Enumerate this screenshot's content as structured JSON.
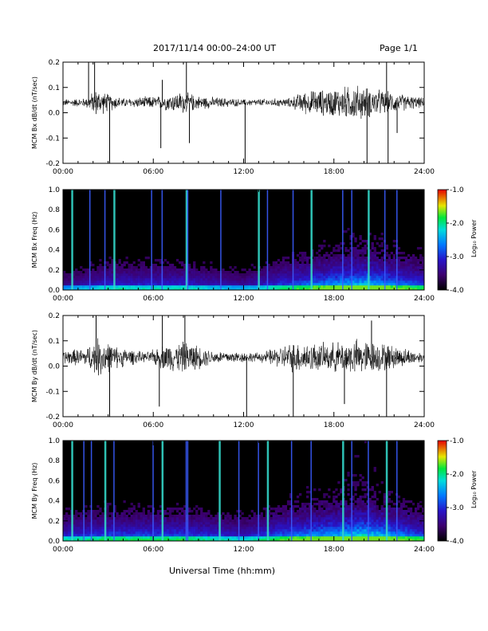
{
  "header": {
    "title": "2017/11/14  00:00–24:00 UT",
    "page": "Page 1/1"
  },
  "xlabel": "Universal Time (hh:mm)",
  "chart_data": [
    {
      "type": "line",
      "ylabel": "MCM Bx dB/dt (nT/sec)",
      "xlim": [
        0,
        24
      ],
      "ylim": [
        -0.2,
        0.2
      ],
      "xticks": [
        "00:00",
        "06:00",
        "12:00",
        "18:00",
        "24:00"
      ],
      "yticks": [
        "-0.2",
        "-0.1",
        "0.0",
        "0.1",
        "0.2"
      ],
      "baseline": 0.04,
      "envelope": [
        {
          "x": 0,
          "amp": 0.015
        },
        {
          "x": 1.5,
          "amp": 0.02
        },
        {
          "x": 2.2,
          "amp": 0.06
        },
        {
          "x": 3,
          "amp": 0.04
        },
        {
          "x": 4,
          "amp": 0.02
        },
        {
          "x": 6.5,
          "amp": 0.03
        },
        {
          "x": 8,
          "amp": 0.05
        },
        {
          "x": 9,
          "amp": 0.03
        },
        {
          "x": 12,
          "amp": 0.015
        },
        {
          "x": 15,
          "amp": 0.02
        },
        {
          "x": 16,
          "amp": 0.05
        },
        {
          "x": 17.5,
          "amp": 0.06
        },
        {
          "x": 19.5,
          "amp": 0.08
        },
        {
          "x": 21.5,
          "amp": 0.05
        },
        {
          "x": 24,
          "amp": 0.02
        }
      ],
      "spikes": [
        {
          "x": 1.7,
          "y": 0.21
        },
        {
          "x": 2.1,
          "y": 0.2
        },
        {
          "x": 3.1,
          "y": -0.21
        },
        {
          "x": 6.5,
          "y": -0.14
        },
        {
          "x": 6.6,
          "y": 0.13
        },
        {
          "x": 8.2,
          "y": 0.21
        },
        {
          "x": 8.4,
          "y": -0.12
        },
        {
          "x": 12.1,
          "y": -0.21
        },
        {
          "x": 20.2,
          "y": -0.21
        },
        {
          "x": 21.5,
          "y": 0.21
        },
        {
          "x": 21.6,
          "y": -0.21
        },
        {
          "x": 22.2,
          "y": -0.08
        }
      ]
    },
    {
      "type": "heatmap",
      "ylabel": "MCM Bx Freq (Hz)",
      "xlim": [
        0,
        24
      ],
      "ylim": [
        0,
        1.0
      ],
      "xticks": [
        "00:00",
        "06:00",
        "12:00",
        "18:00",
        "24:00"
      ],
      "yticks": [
        "0.0",
        "0.2",
        "0.4",
        "0.6",
        "0.8",
        "1.0"
      ],
      "colorbar": {
        "label": "Log₁₀ Power",
        "ticks": [
          "-1.0",
          "-2.0",
          "-3.0",
          "-4.0"
        ],
        "range": [
          -4.0,
          -1.0
        ]
      },
      "stripes": [
        0.6,
        1.8,
        2.8,
        3.4,
        5.9,
        6.6,
        8.2,
        8.3,
        10.5,
        13.0,
        13.6,
        15.3,
        16.5,
        18.6,
        19.2,
        20.3,
        21.4,
        22.2
      ],
      "activity": [
        {
          "x": 0,
          "a": 0.3
        },
        {
          "x": 3,
          "a": 0.5
        },
        {
          "x": 8,
          "a": 0.5
        },
        {
          "x": 12,
          "a": 0.35
        },
        {
          "x": 15,
          "a": 0.6
        },
        {
          "x": 18,
          "a": 0.8
        },
        {
          "x": 20,
          "a": 0.9
        },
        {
          "x": 24,
          "a": 0.6
        }
      ]
    },
    {
      "type": "line",
      "ylabel": "MCM By dB/dt (nT/sec)",
      "xlim": [
        0,
        24
      ],
      "ylim": [
        -0.2,
        0.2
      ],
      "xticks": [
        "00:00",
        "06:00",
        "12:00",
        "18:00",
        "24:00"
      ],
      "yticks": [
        "-0.2",
        "-0.1",
        "0.0",
        "0.1",
        "0.2"
      ],
      "baseline": 0.035,
      "envelope": [
        {
          "x": 0,
          "amp": 0.03
        },
        {
          "x": 1.5,
          "amp": 0.04
        },
        {
          "x": 2.4,
          "amp": 0.09
        },
        {
          "x": 3.5,
          "amp": 0.05
        },
        {
          "x": 5.5,
          "amp": 0.02
        },
        {
          "x": 6.8,
          "amp": 0.06
        },
        {
          "x": 8.2,
          "amp": 0.07
        },
        {
          "x": 10,
          "amp": 0.03
        },
        {
          "x": 13,
          "amp": 0.02
        },
        {
          "x": 15.5,
          "amp": 0.07
        },
        {
          "x": 17.5,
          "amp": 0.06
        },
        {
          "x": 19.5,
          "amp": 0.08
        },
        {
          "x": 21.5,
          "amp": 0.06
        },
        {
          "x": 24,
          "amp": 0.02
        }
      ],
      "spikes": [
        {
          "x": 2.2,
          "y": 0.2
        },
        {
          "x": 3.1,
          "y": -0.21
        },
        {
          "x": 6.4,
          "y": -0.16
        },
        {
          "x": 6.6,
          "y": 0.21
        },
        {
          "x": 8.1,
          "y": 0.2
        },
        {
          "x": 12.2,
          "y": -0.21
        },
        {
          "x": 15.3,
          "y": -0.21
        },
        {
          "x": 18.7,
          "y": -0.15
        },
        {
          "x": 21.5,
          "y": -0.21
        },
        {
          "x": 20.5,
          "y": 0.18
        }
      ]
    },
    {
      "type": "heatmap",
      "ylabel": "MCM By Freq (Hz)",
      "xlim": [
        0,
        24
      ],
      "ylim": [
        0,
        1.0
      ],
      "xticks": [
        "00:00",
        "06:00",
        "12:00",
        "18:00",
        "24:00"
      ],
      "yticks": [
        "0.0",
        "0.2",
        "0.4",
        "0.6",
        "0.8",
        "1.0"
      ],
      "colorbar": {
        "label": "Log₁₀ Power",
        "ticks": [
          "-1.0",
          "-2.0",
          "-3.0",
          "-4.0"
        ],
        "range": [
          -4.0,
          -1.0
        ]
      },
      "stripes": [
        0.6,
        1.4,
        1.9,
        2.8,
        3.4,
        6.0,
        6.6,
        8.2,
        8.3,
        10.4,
        11.7,
        13.0,
        13.6,
        15.2,
        16.5,
        18.6,
        19.2,
        20.3,
        21.5,
        22.2
      ],
      "activity": [
        {
          "x": 0,
          "a": 0.5
        },
        {
          "x": 3,
          "a": 0.6
        },
        {
          "x": 8,
          "a": 0.6
        },
        {
          "x": 12,
          "a": 0.45
        },
        {
          "x": 15,
          "a": 0.7
        },
        {
          "x": 18,
          "a": 0.85
        },
        {
          "x": 20,
          "a": 1.0
        },
        {
          "x": 24,
          "a": 0.6
        }
      ]
    }
  ]
}
